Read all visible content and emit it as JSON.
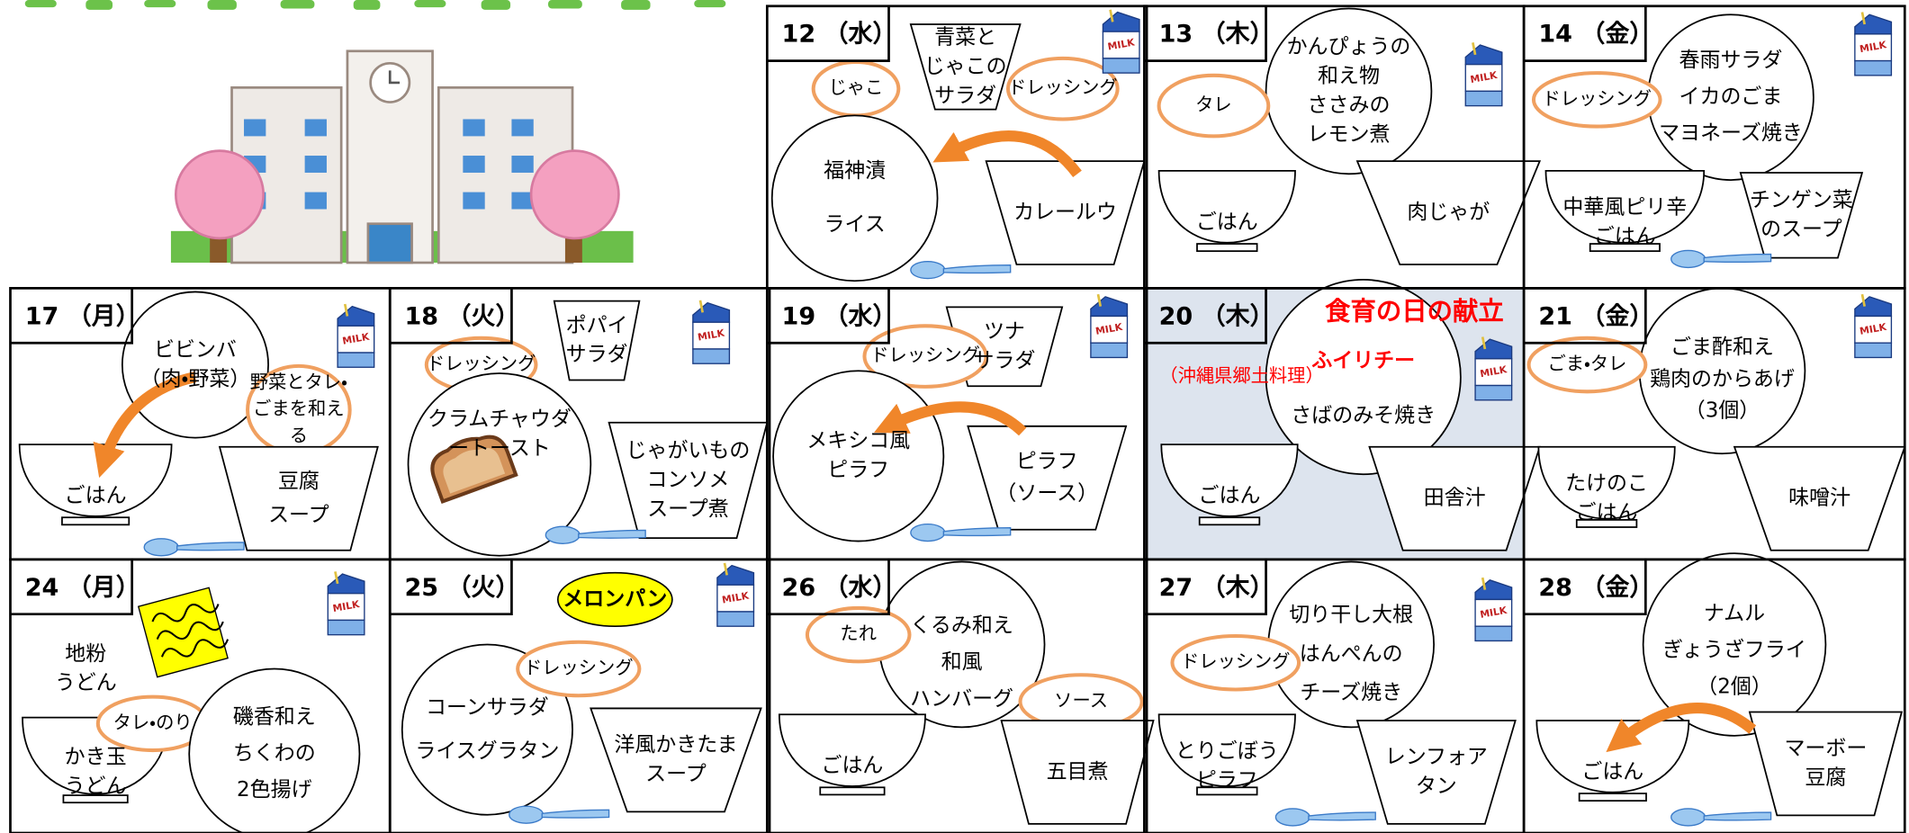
{
  "milk": "MILK",
  "cells": [
    {
      "date": "12 （水）",
      "items": [
        [
          "青菜と",
          "じゃこの",
          "サラダ"
        ],
        [
          "じゃこ"
        ],
        [
          "ドレッシング"
        ],
        [
          "福神漬",
          "ライス"
        ],
        [
          "カレールウ"
        ]
      ]
    },
    {
      "date": "13 （木）",
      "items": [
        [
          "かんぴょうの",
          "和え物",
          "ささみの",
          "レモン煮"
        ],
        [
          "タレ"
        ],
        [
          "ごはん"
        ],
        [
          "肉じゃが"
        ]
      ]
    },
    {
      "date": "14 （金）",
      "items": [
        [
          "春雨サラダ",
          "イカのごま",
          "マヨネーズ焼き"
        ],
        [
          "ドレッシング"
        ],
        [
          "中華風ピリ辛",
          "ごはん"
        ],
        [
          "チンゲン菜",
          "のスープ"
        ]
      ]
    },
    {
      "date": "17 （月）",
      "items": [
        [
          "ビビンバ",
          "（肉・野菜）"
        ],
        [
          "野菜とタレ・",
          "ごまを和え",
          "る"
        ],
        [
          "ごはん"
        ],
        [
          "豆腐",
          "スープ"
        ]
      ]
    },
    {
      "date": "18 （火）",
      "items": [
        [
          "ポパイ",
          "サラダ"
        ],
        [
          "ドレッシング"
        ],
        [
          "クラムチャウダ",
          "ートースト"
        ],
        [
          "じゃがいもの",
          "コンソメ",
          "スープ煮"
        ]
      ]
    },
    {
      "date": "19 （水）",
      "items": [
        [
          "ツナ",
          "サラダ"
        ],
        [
          "ドレッシング"
        ],
        [
          "メキシコ風",
          "ピラフ"
        ],
        [
          "ピラフ",
          "（ソース）"
        ]
      ]
    },
    {
      "date": "20 （木）",
      "items": [
        [
          "食育の日の献立"
        ],
        [
          "ふイリチー"
        ],
        [
          "（沖縄県郷土料理）"
        ],
        [
          "さばのみそ焼き"
        ],
        [
          "ごはん"
        ],
        [
          "田舎汁"
        ]
      ]
    },
    {
      "date": "21 （金）",
      "items": [
        [
          "ごま酢和え",
          "鶏肉のからあげ",
          "（3個）"
        ],
        [
          "ごま・タレ"
        ],
        [
          "たけのこ",
          "ごはん"
        ],
        [
          "味噌汁"
        ]
      ]
    },
    {
      "date": "24 （月）",
      "items": [
        [
          "地粉",
          "うどん"
        ],
        [
          "かき玉",
          "うどん"
        ],
        [
          "タレ・のり"
        ],
        [
          "磯香和え",
          "ちくわの",
          "2色揚げ"
        ]
      ]
    },
    {
      "date": "25 （火）",
      "items": [
        [
          "メロンパン"
        ],
        [
          "コーンサラダ",
          "ライスグラタン"
        ],
        [
          "ドレッシング"
        ],
        [
          "洋風かきたま",
          "スープ"
        ]
      ]
    },
    {
      "date": "26 （水）",
      "items": [
        [
          "くるみ和え",
          "和風",
          "ハンバーグ"
        ],
        [
          "たれ"
        ],
        [
          "ソース"
        ],
        [
          "ごはん"
        ],
        [
          "五目煮"
        ]
      ]
    },
    {
      "date": "27 （木）",
      "items": [
        [
          "切り干し大根",
          "はんぺんの",
          "チーズ焼き"
        ],
        [
          "ドレッシング"
        ],
        [
          "とりごぼう",
          "ピラフ"
        ],
        [
          "レンフォア",
          "タン"
        ]
      ]
    },
    {
      "date": "28 （金）",
      "items": [
        [
          "ナムル",
          "ぎょうざフライ",
          "（2個）"
        ],
        [
          "ごはん"
        ],
        [
          "マーボー",
          "豆腐"
        ]
      ]
    }
  ]
}
